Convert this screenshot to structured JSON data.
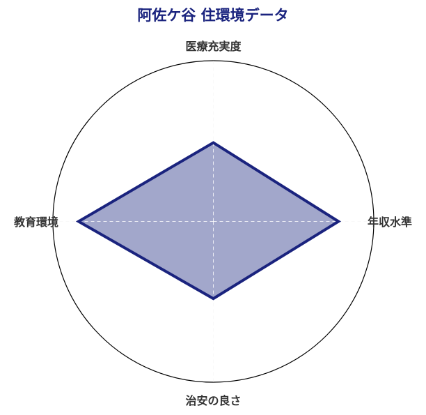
{
  "chart_data": {
    "type": "radar",
    "title": "阿佐ケ谷 住環境データ",
    "axes": [
      "医療充実度",
      "年収水準",
      "治安の良さ",
      "教育環境"
    ],
    "values": [
      49,
      78,
      48,
      84
    ],
    "range": [
      0,
      100
    ],
    "colors": {
      "line": "#1a237e",
      "fill": "#a2a7cb",
      "title": "#1a237e",
      "grid": "#dddddd"
    }
  }
}
